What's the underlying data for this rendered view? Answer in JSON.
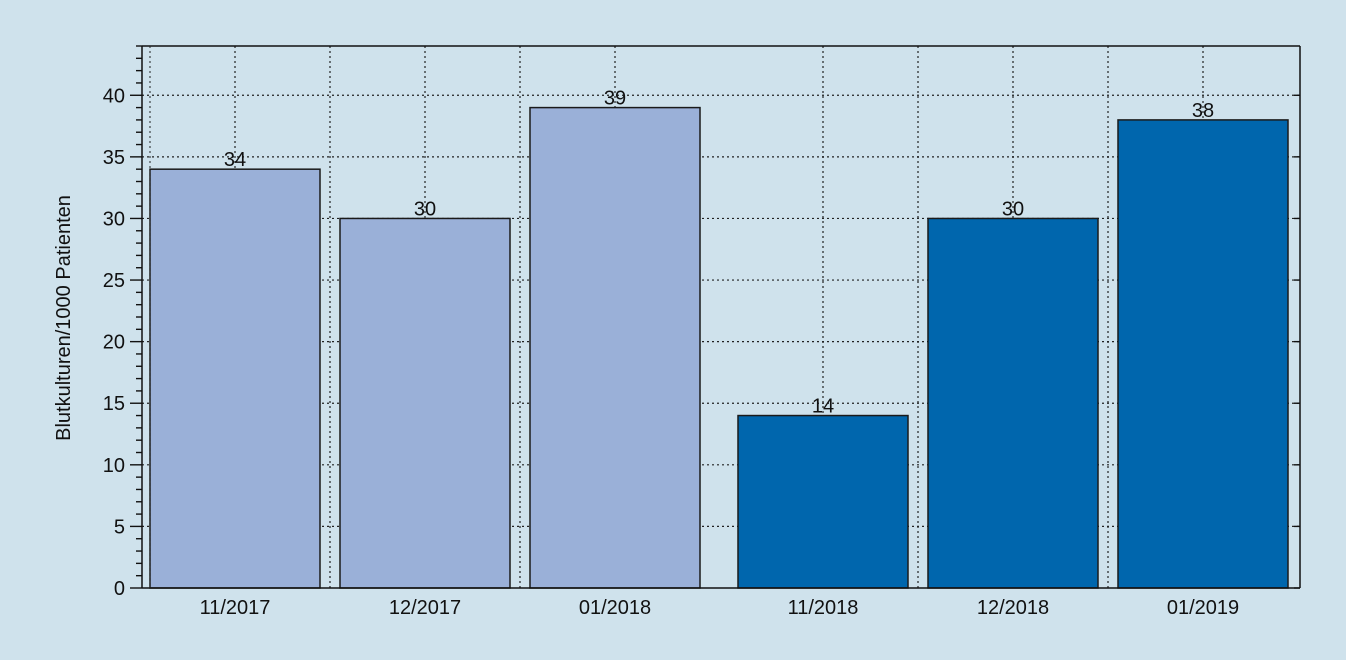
{
  "chart_data": {
    "type": "bar",
    "title": "",
    "xlabel": "",
    "ylabel": "Blutkulturen/1000 Patienten",
    "ylim": [
      0,
      44
    ],
    "yticks": [
      0,
      5,
      10,
      15,
      20,
      25,
      30,
      35,
      40
    ],
    "grid": true,
    "groups": [
      {
        "color": "#9ab0d8",
        "categories": [
          "11/2017",
          "12/2017",
          "01/2018"
        ],
        "values": [
          34,
          30,
          39
        ]
      },
      {
        "color": "#0066ad",
        "categories": [
          "11/2018",
          "12/2018",
          "01/2019"
        ],
        "values": [
          14,
          30,
          38
        ]
      }
    ]
  }
}
